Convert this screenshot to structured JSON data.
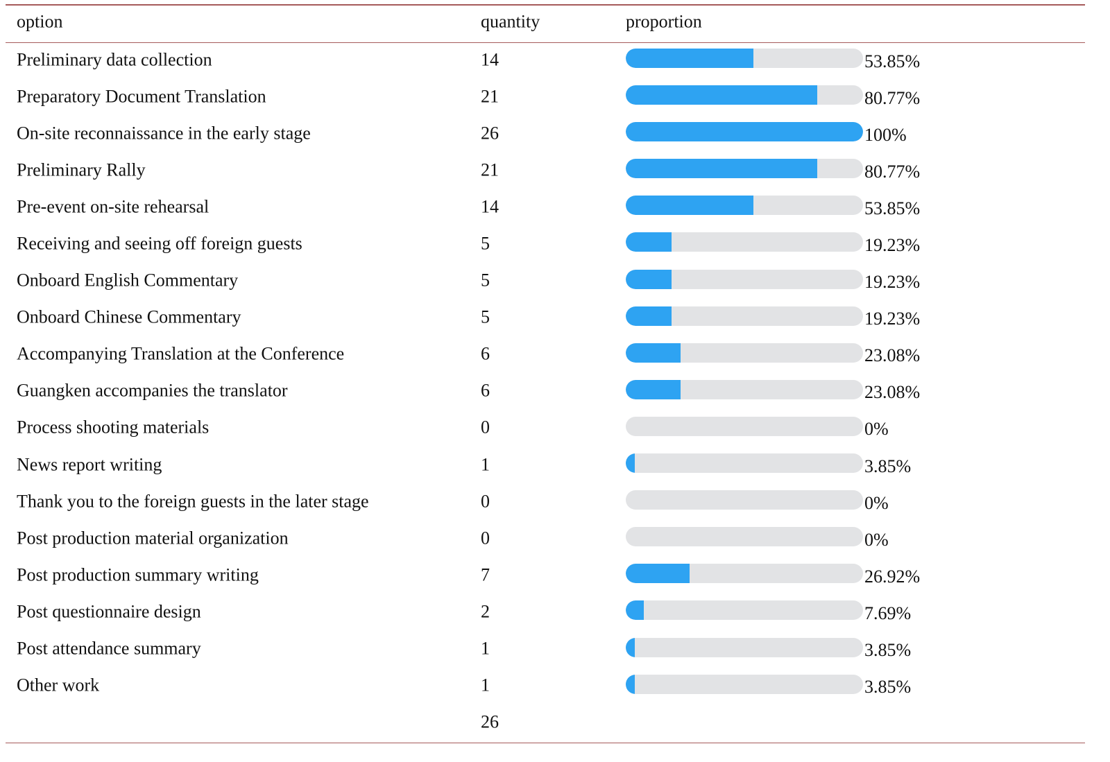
{
  "header": {
    "option": "option",
    "quantity": "quantity",
    "proportion": "proportion"
  },
  "colors": {
    "bar_fill": "#2ea3f2",
    "bar_track": "#e2e3e5",
    "rule": "#a55a5a"
  },
  "rows": [
    {
      "option": "Preliminary data collection",
      "quantity": "14",
      "proportion": "53.85%",
      "value": 53.85
    },
    {
      "option": "Preparatory Document Translation",
      "quantity": "21",
      "proportion": "80.77%",
      "value": 80.77
    },
    {
      "option": "On-site reconnaissance in the early stage",
      "quantity": "26",
      "proportion": "100%",
      "value": 100
    },
    {
      "option": "Preliminary Rally",
      "quantity": "21",
      "proportion": "80.77%",
      "value": 80.77
    },
    {
      "option": "Pre-event on-site rehearsal",
      "quantity": "14",
      "proportion": "53.85%",
      "value": 53.85
    },
    {
      "option": "Receiving and seeing off foreign guests",
      "quantity": "5",
      "proportion": "19.23%",
      "value": 19.23
    },
    {
      "option": "Onboard English Commentary",
      "quantity": "5",
      "proportion": "19.23%",
      "value": 19.23
    },
    {
      "option": "Onboard Chinese Commentary",
      "quantity": "5",
      "proportion": "19.23%",
      "value": 19.23
    },
    {
      "option": "Accompanying Translation at the Conference",
      "quantity": "6",
      "proportion": "23.08%",
      "value": 23.08
    },
    {
      "option": "Guangken accompanies the translator",
      "quantity": "6",
      "proportion": "23.08%",
      "value": 23.08
    },
    {
      "option": "Process shooting materials",
      "quantity": "0",
      "proportion": "0%",
      "value": 0
    },
    {
      "option": "News report writing",
      "quantity": "1",
      "proportion": "3.85%",
      "value": 3.85
    },
    {
      "option": "Thank you to the foreign guests in the later stage",
      "quantity": "0",
      "proportion": "0%",
      "value": 0
    },
    {
      "option": "Post production material organization",
      "quantity": "0",
      "proportion": "0%",
      "value": 0
    },
    {
      "option": "Post production summary writing",
      "quantity": "7",
      "proportion": "26.92%",
      "value": 26.92
    },
    {
      "option": "Post questionnaire design",
      "quantity": "2",
      "proportion": "7.69%",
      "value": 7.69
    },
    {
      "option": "Post attendance summary",
      "quantity": "1",
      "proportion": "3.85%",
      "value": 3.85
    },
    {
      "option": "Other work",
      "quantity": "1",
      "proportion": "3.85%",
      "value": 3.85
    }
  ],
  "total": "26",
  "chart_data": {
    "type": "bar",
    "orientation": "horizontal",
    "title": "",
    "categories": [
      "Preliminary data collection",
      "Preparatory Document Translation",
      "On-site reconnaissance in the early stage",
      "Preliminary Rally",
      "Pre-event on-site rehearsal",
      "Receiving and seeing off foreign guests",
      "Onboard English Commentary",
      "Onboard Chinese Commentary",
      "Accompanying Translation at the Conference",
      "Guangken accompanies the translator",
      "Process shooting materials",
      "News report writing",
      "Thank you to the foreign guests in the later stage",
      "Post production material organization",
      "Post production summary writing",
      "Post questionnaire design",
      "Post attendance summary",
      "Other work"
    ],
    "series": [
      {
        "name": "quantity",
        "values": [
          14,
          21,
          26,
          21,
          14,
          5,
          5,
          5,
          6,
          6,
          0,
          1,
          0,
          0,
          7,
          2,
          1,
          1
        ]
      },
      {
        "name": "proportion",
        "values": [
          53.85,
          80.77,
          100,
          80.77,
          53.85,
          19.23,
          19.23,
          19.23,
          23.08,
          23.08,
          0,
          3.85,
          0,
          0,
          26.92,
          7.69,
          3.85,
          3.85
        ]
      }
    ],
    "xlim": [
      0,
      100
    ],
    "grid": false
  }
}
